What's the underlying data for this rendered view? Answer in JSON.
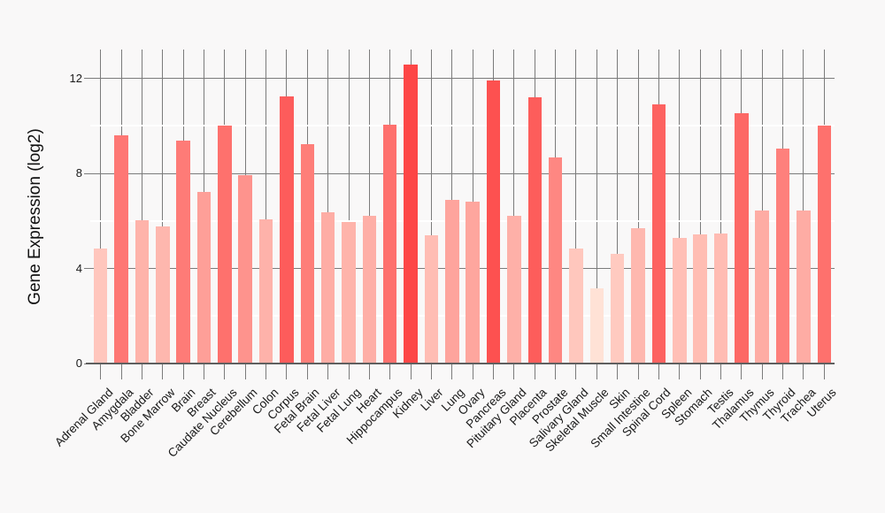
{
  "style": {
    "background": "#f9f8f8",
    "grid_color": "#7b7b7b",
    "minor_grid_color": "#ffffff",
    "axis_line_color": "#5f5f5f",
    "text_color": "#1a1a1a",
    "bar_color_low": "#ffe2d6",
    "bar_color_high": "#fd4646"
  },
  "chart_data": {
    "type": "bar",
    "title": "",
    "xlabel": "",
    "ylabel": "Gene Expression (log2)",
    "legend": null,
    "grid": true,
    "ylim": [
      0,
      13.2
    ],
    "yticks": [
      0,
      4,
      8,
      12
    ],
    "minor_yticks": [
      2,
      6,
      10
    ],
    "color_scale": {
      "low": "#ffe2d6",
      "high": "#fd4646",
      "domain": [
        3.17,
        12.58
      ]
    },
    "categories": [
      "Adrenal Gland",
      "Amygdala",
      "Bladder",
      "Bone Marrow",
      "Brain",
      "Breast",
      "Caudate Nucleus",
      "Cerebellum",
      "Colon",
      "Corpus",
      "Fetal Brain",
      "Fetal Liver",
      "Fetal Lung",
      "Heart",
      "Hippocampus",
      "Kidney",
      "Liver",
      "Lung",
      "Ovary",
      "Pancreas",
      "Pituitary Gland",
      "Placenta",
      "Prostate",
      "Salivary Gland",
      "Skeletal Muscle",
      "Skin",
      "Small Intestine",
      "Spinal Cord",
      "Spleen",
      "Stomach",
      "Testis",
      "Thalamus",
      "Thymus",
      "Thyroid",
      "Trachea",
      "Uterus"
    ],
    "values": [
      4.83,
      9.6,
      6.02,
      5.77,
      9.37,
      7.22,
      10.01,
      7.94,
      6.07,
      11.23,
      9.23,
      6.38,
      5.96,
      6.22,
      10.06,
      12.58,
      5.39,
      6.89,
      6.8,
      11.91,
      6.2,
      11.19,
      8.67,
      4.82,
      3.17,
      4.61,
      5.7,
      10.89,
      5.28,
      5.43,
      5.48,
      10.53,
      6.43,
      9.06,
      6.43,
      10.0
    ]
  }
}
